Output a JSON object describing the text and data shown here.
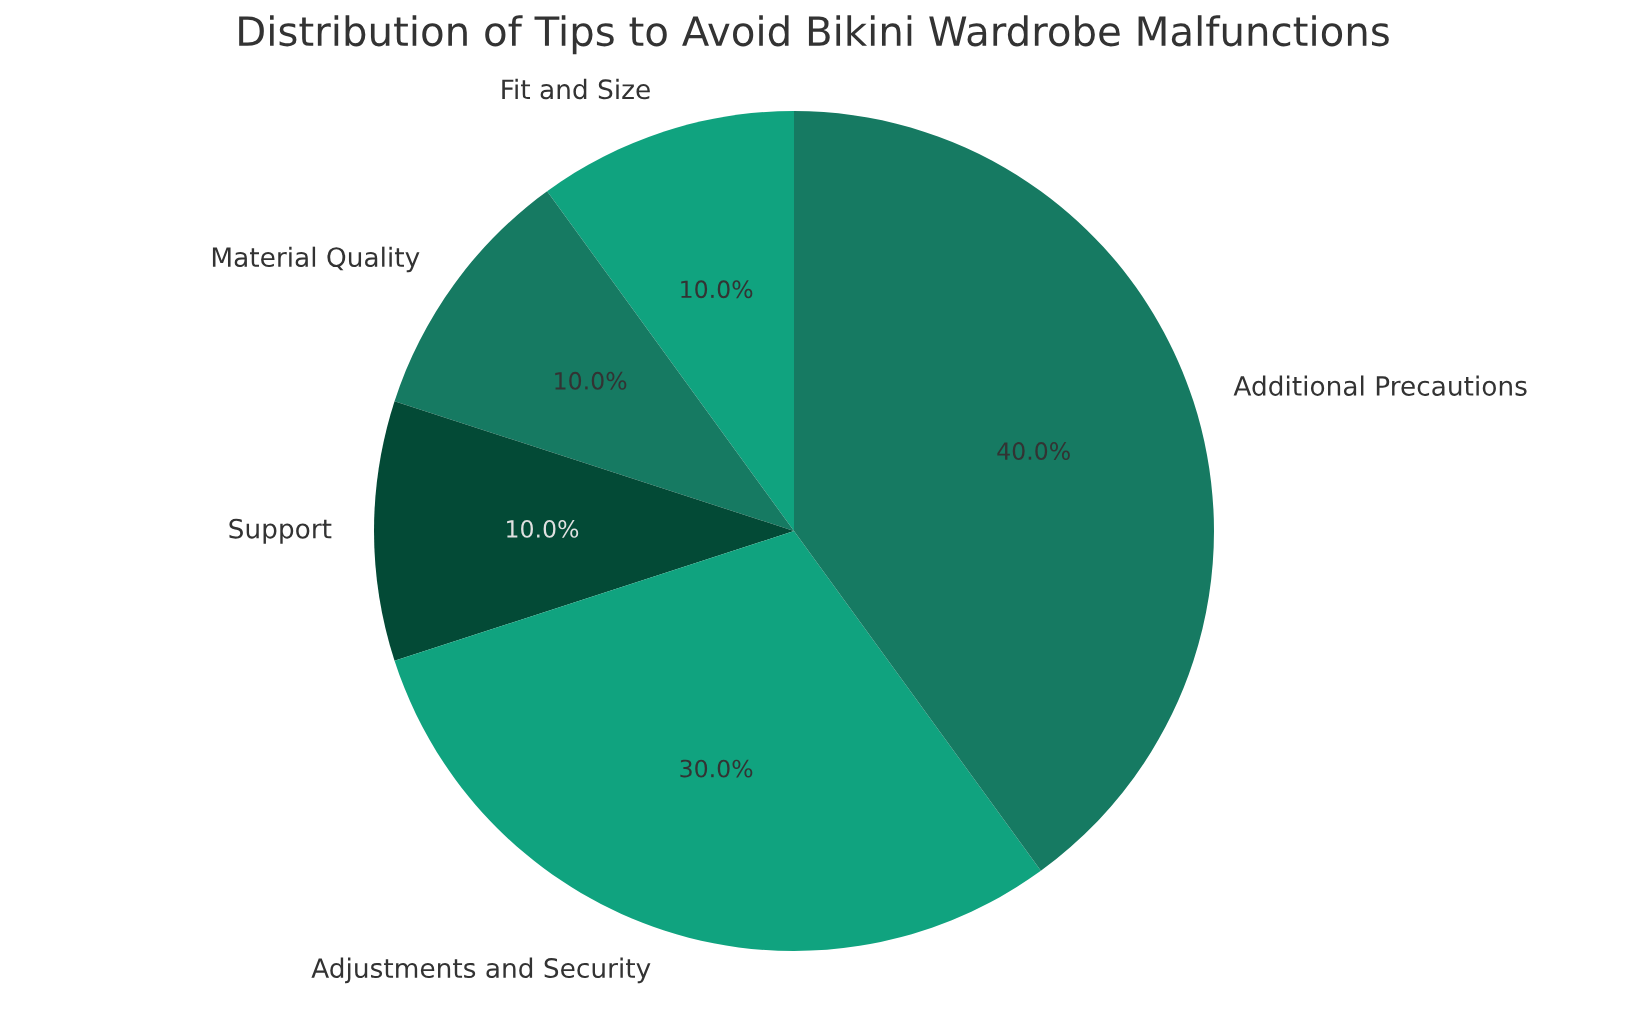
{
  "chart_data": {
    "type": "pie",
    "title": "Distribution of Tips to Avoid Bikini Wardrobe Malfunctions",
    "categories": [
      "Fit and Size",
      "Material Quality",
      "Support",
      "Adjustments and Security",
      "Additional Precautions"
    ],
    "values": [
      10,
      10,
      10,
      30,
      40
    ],
    "value_labels": [
      "10.0%",
      "10.0%",
      "10.0%",
      "30.0%",
      "40.0%"
    ],
    "colors": [
      "#10a37f",
      "#167a62",
      "#034a36",
      "#10a37f",
      "#167a62"
    ]
  }
}
